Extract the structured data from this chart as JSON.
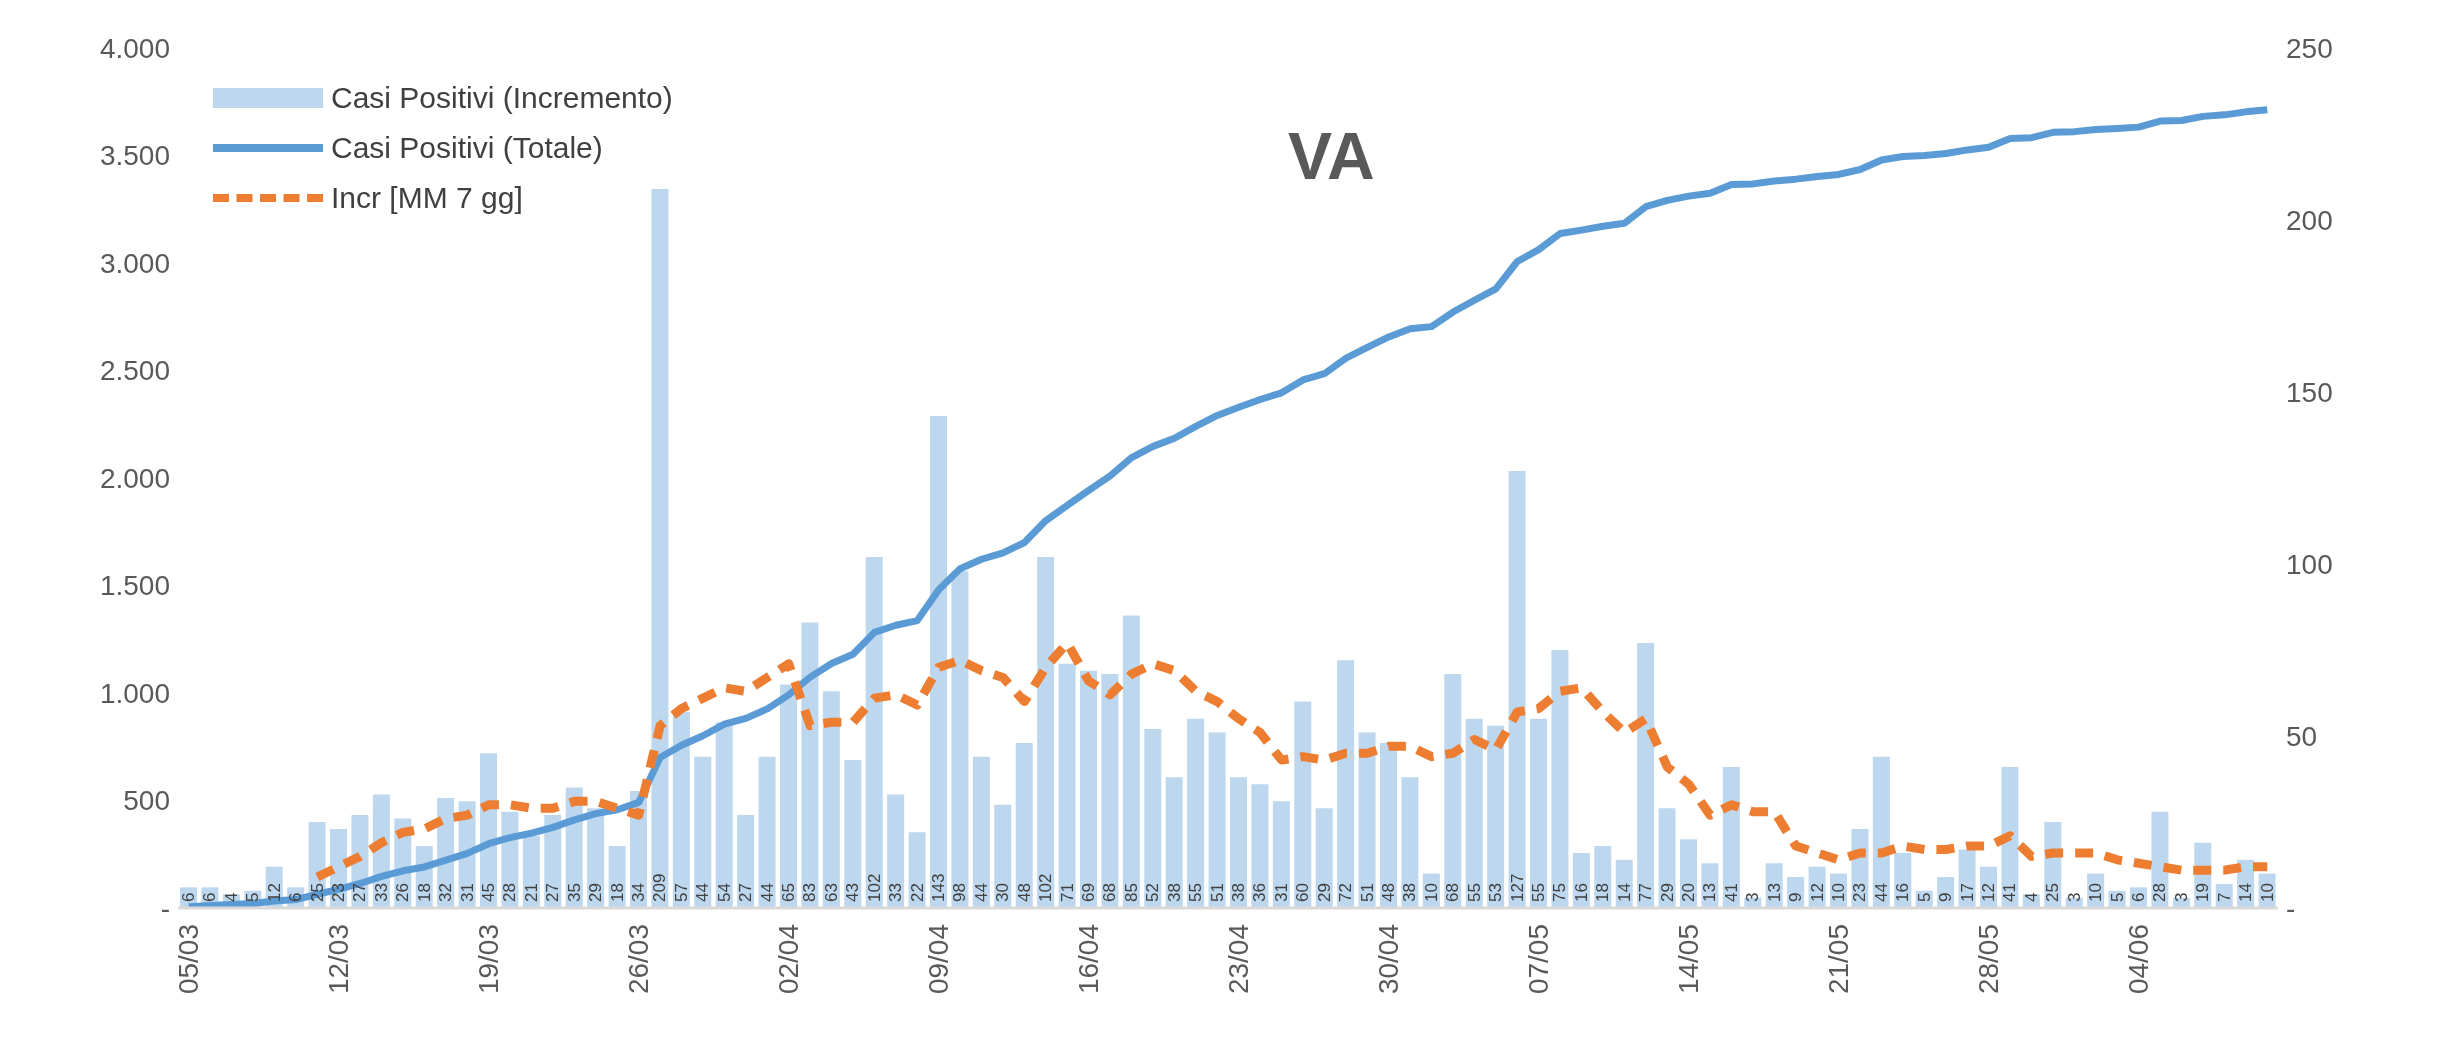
{
  "chart_data": {
    "type": "bar",
    "title": "VA",
    "categories": [
      "05/03",
      null,
      null,
      null,
      null,
      null,
      null,
      "12/03",
      null,
      null,
      null,
      null,
      null,
      null,
      "19/03",
      null,
      null,
      null,
      null,
      null,
      null,
      "26/03",
      null,
      null,
      null,
      null,
      null,
      null,
      "02/04",
      null,
      null,
      null,
      null,
      null,
      null,
      "09/04",
      null,
      null,
      null,
      null,
      null,
      null,
      "16/04",
      null,
      null,
      null,
      null,
      null,
      null,
      "23/04",
      null,
      null,
      null,
      null,
      null,
      null,
      "30/04",
      null,
      null,
      null,
      null,
      null,
      null,
      "07/05",
      null,
      null,
      null,
      null,
      null,
      null,
      "14/05",
      null,
      null,
      null,
      null,
      null,
      null,
      "21/05",
      null,
      null,
      null,
      null,
      null,
      null,
      "28/05",
      null,
      null,
      null,
      null,
      null,
      null,
      "04/06",
      null,
      null,
      null,
      null,
      null,
      null
    ],
    "series": [
      {
        "name": "Casi Positivi (Incremento)",
        "axis": "y2",
        "color": "#bdd7ee",
        "value_labels": [
          "6",
          "6",
          "4",
          "5",
          "12",
          "6",
          "25",
          "23",
          "27",
          "33",
          "26",
          "18",
          "32",
          "31",
          "45",
          "28",
          "21",
          "27",
          "35",
          "29",
          "18",
          "34",
          "209",
          "57",
          "44",
          "54",
          "27",
          "44",
          "65",
          "83",
          "63",
          "43",
          "102",
          "33",
          "22",
          "143",
          "98",
          "44",
          "30",
          "48",
          "102",
          "71",
          "69",
          "68",
          "85",
          "52",
          "38",
          "55",
          "51",
          "38",
          "36",
          "31",
          "60",
          "29",
          "72",
          "51",
          "48",
          "38",
          "10",
          "68",
          "55",
          "53",
          "127",
          "55",
          "75",
          "16",
          "18",
          "14",
          "77",
          "29",
          "20",
          "13",
          "41",
          "3",
          "13",
          "9",
          "12",
          "10",
          "23",
          "44",
          "16",
          "5",
          "9",
          "17",
          "12",
          "41",
          "4",
          "25",
          "3",
          "10",
          "5",
          "6",
          "28",
          "3",
          "19",
          "7",
          "14",
          "10"
        ],
        "values": [
          6,
          6,
          4,
          5,
          12,
          6,
          25,
          23,
          27,
          33,
          26,
          18,
          32,
          31,
          45,
          28,
          21,
          27,
          35,
          29,
          18,
          34,
          209,
          57,
          44,
          54,
          27,
          44,
          65,
          83,
          63,
          43,
          102,
          33,
          22,
          143,
          98,
          44,
          30,
          48,
          102,
          71,
          69,
          68,
          85,
          52,
          38,
          55,
          51,
          38,
          36,
          31,
          60,
          29,
          72,
          51,
          48,
          38,
          10,
          68,
          55,
          53,
          127,
          55,
          75,
          16,
          18,
          14,
          77,
          29,
          20,
          13,
          41,
          3,
          13,
          9,
          12,
          10,
          23,
          44,
          16,
          5,
          9,
          17,
          12,
          41,
          4,
          25,
          3,
          10,
          5,
          6,
          28,
          3,
          19,
          7,
          14,
          10
        ]
      },
      {
        "name": "Casi Positivi (Totale)",
        "type": "line",
        "line_style": "solid",
        "color": "#5b9bd5",
        "values": [
          6,
          12,
          16,
          21,
          33,
          39,
          64,
          87,
          114,
          147,
          173,
          191,
          223,
          254,
          299,
          327,
          348,
          375,
          410,
          439,
          457,
          491,
          700,
          757,
          801,
          855,
          882,
          926,
          991,
          1074,
          1137,
          1180,
          1282,
          1315,
          1337,
          1480,
          1578,
          1622,
          1652,
          1700,
          1802,
          1873,
          1942,
          2010,
          2095,
          2147,
          2185,
          2240,
          2291,
          2329,
          2365,
          2396,
          2456,
          2485,
          2557,
          2608,
          2656,
          2694,
          2704,
          2772,
          2827,
          2880,
          3007,
          3062,
          3137,
          3153,
          3171,
          3185,
          3262,
          3291,
          3311,
          3324,
          3365,
          3368,
          3381,
          3390,
          3402,
          3412,
          3435,
          3479,
          3495,
          3500,
          3509,
          3526,
          3538,
          3579,
          3583,
          3608,
          3611,
          3621,
          3626,
          3632,
          3660,
          3663,
          3682,
          3689,
          3703,
          3713
        ]
      },
      {
        "name": "Incr [MM 7 gg]",
        "type": "line",
        "axis": "y2",
        "line_style": "dashed",
        "color": "#ed7d31",
        "values": [
          null,
          null,
          null,
          null,
          null,
          null,
          9,
          12,
          15,
          19,
          22,
          23,
          26,
          27,
          30,
          30,
          29,
          29,
          31,
          31,
          29,
          27,
          53,
          58,
          61,
          64,
          63,
          67,
          71,
          53,
          54,
          54,
          61,
          62,
          59,
          70,
          72,
          69,
          67,
          60,
          70,
          77,
          66,
          62,
          68,
          71,
          69,
          63,
          60,
          55,
          51,
          43,
          44,
          43,
          45,
          45,
          47,
          47,
          44,
          45,
          49,
          46,
          57,
          58,
          63,
          64,
          57,
          51,
          55,
          41,
          36,
          27,
          30,
          28,
          28,
          18,
          16,
          14,
          16,
          16,
          18,
          17,
          17,
          18,
          18,
          21,
          15,
          16,
          16,
          16,
          14,
          13,
          12,
          11,
          11,
          11,
          12,
          12
        ]
      }
    ],
    "ylim": [
      0,
      4000
    ],
    "yticks": [
      {
        "value": 0,
        "label": "-"
      },
      500,
      {
        "value": 1000,
        "label": "1.000"
      },
      {
        "value": 1500,
        "label": "1.500"
      },
      {
        "value": 2000,
        "label": "2.000"
      },
      {
        "value": 2500,
        "label": "2.500"
      },
      {
        "value": 3000,
        "label": "3.000"
      },
      {
        "value": 3500,
        "label": "3.500"
      },
      {
        "value": 4000,
        "label": "4.000"
      }
    ],
    "y2lim": [
      0,
      250
    ],
    "y2ticks": [
      {
        "value": 0,
        "label": "-"
      },
      50,
      100,
      150,
      200,
      250
    ],
    "legend": "top left",
    "marker": "none"
  }
}
